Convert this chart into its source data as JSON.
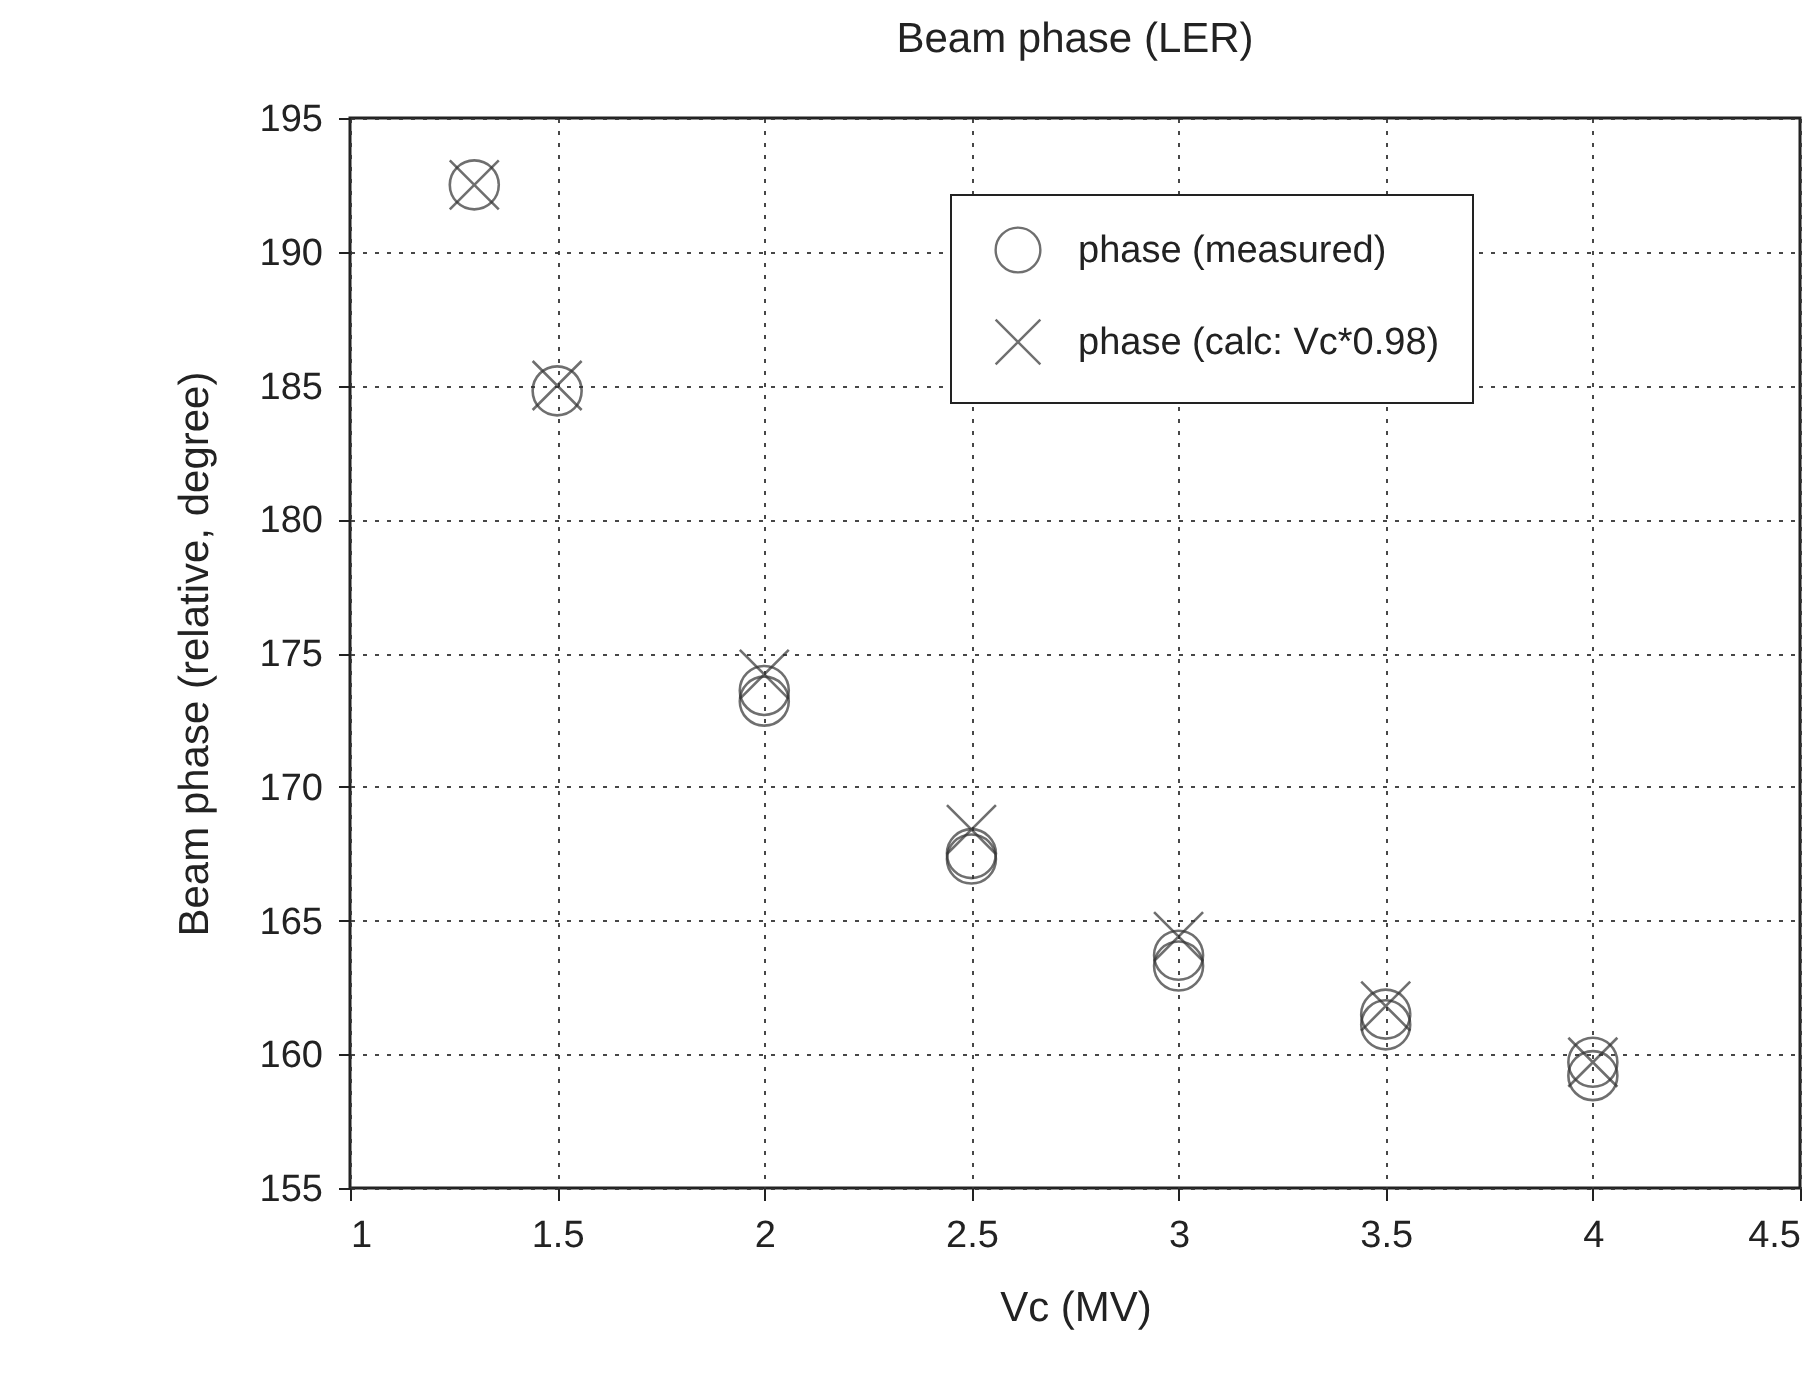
{
  "chart_data": {
    "type": "scatter",
    "title": "Beam phase (LER)",
    "xlabel": "Vc (MV)",
    "ylabel": "Beam phase (relative, degree)",
    "xlim": [
      1,
      4.5
    ],
    "xticks": [
      1,
      1.5,
      2,
      2.5,
      3,
      3.5,
      4,
      4.5
    ],
    "ylim": [
      155,
      195
    ],
    "yticks": [
      155,
      160,
      165,
      170,
      175,
      180,
      185,
      190,
      195
    ],
    "grid": true,
    "legend": "top right",
    "series": [
      {
        "name": "phase (measured)",
        "color": "#333333",
        "marker": "circle",
        "x": [
          1.3,
          1.5,
          2,
          2,
          2.5,
          2.5,
          3,
          3,
          3.5,
          3.5,
          4,
          4
        ],
        "values": [
          192.5,
          184.8,
          173.2,
          173.6,
          167.3,
          167.5,
          163.3,
          163.7,
          161.1,
          161.5,
          159.2,
          159.7
        ]
      },
      {
        "name": "phase (calc: Vc*0.98)",
        "color": "#333333",
        "marker": "cross",
        "x": [
          1.3,
          1.5,
          2,
          2.5,
          3,
          3.5,
          4
        ],
        "values": [
          192.5,
          185,
          174.2,
          168.4,
          164.4,
          161.8,
          159.7
        ]
      }
    ]
  }
}
